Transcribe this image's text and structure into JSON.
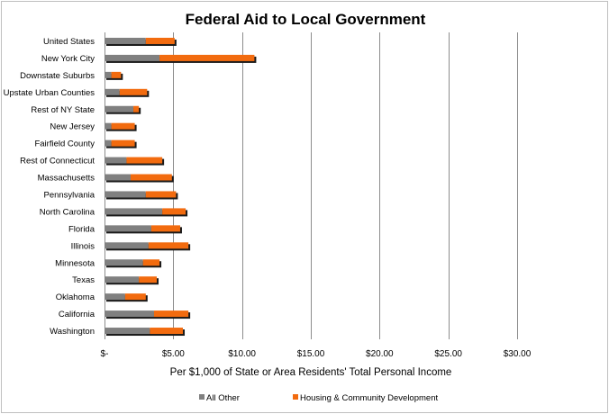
{
  "chart_data": {
    "type": "bar",
    "orientation": "horizontal",
    "stacked": true,
    "title": "Federal Aid to Local Government",
    "xlabel": "Per $1,000 of State or Area Residents' Total Personal Income",
    "ylabel": "",
    "xlim": [
      0,
      30
    ],
    "x_ticks": [
      0,
      5,
      10,
      15,
      20,
      25,
      30
    ],
    "x_tick_labels": [
      "$-",
      "$5.00",
      "$10.00",
      "$15.00",
      "$20.00",
      "$25.00",
      "$30.00"
    ],
    "grid": "vertical",
    "legend_position": "bottom",
    "categories": [
      "United States",
      "New York City",
      "Downstate Suburbs",
      "Upstate Urban Counties",
      "Rest of NY State",
      "New Jersey",
      "Fairfield County",
      "Rest of Connecticut",
      "Massachusetts",
      "Pennsylvania",
      "North Carolina",
      "Florida",
      "Illinois",
      "Minnesota",
      "Texas",
      "Oklahoma",
      "California",
      "Washington"
    ],
    "series": [
      {
        "name": "All Other",
        "color": "#808080",
        "values": [
          3.0,
          4.0,
          0.5,
          1.1,
          2.1,
          0.5,
          0.5,
          1.6,
          1.9,
          3.0,
          4.2,
          3.4,
          3.2,
          2.8,
          2.5,
          1.5,
          3.6,
          3.3
        ]
      },
      {
        "name": "Housing & Community Development",
        "color": "#f26b0f",
        "values": [
          2.1,
          6.9,
          0.7,
          2.0,
          0.4,
          1.7,
          1.7,
          2.6,
          3.0,
          2.2,
          1.7,
          2.1,
          2.9,
          1.2,
          1.3,
          1.5,
          2.5,
          2.4
        ]
      }
    ]
  }
}
